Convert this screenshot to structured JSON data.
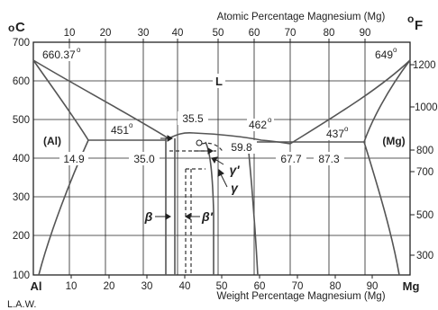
{
  "title_top": "Atomic Percentage Magnesium (Mg)",
  "title_bottom": "Weight Percentage Magnesium (Mg)",
  "unit_c_base": "o",
  "unit_c_letter": "C",
  "unit_f_base": "o",
  "unit_f_letter": "F",
  "credit": "L.A.W.",
  "element_left": "Al",
  "element_right": "Mg",
  "y_ticks_c": [
    "100",
    "200",
    "300",
    "400",
    "500",
    "600",
    "700"
  ],
  "y_ticks_f": [
    "300",
    "500",
    "700",
    "800",
    "1000",
    "1200"
  ],
  "x_ticks_weight": [
    "10",
    "20",
    "30",
    "40",
    "50",
    "60",
    "70",
    "80",
    "90"
  ],
  "x_ticks_atomic": [
    "10",
    "20",
    "30",
    "40",
    "50",
    "60",
    "70",
    "80",
    "90"
  ],
  "phase_liquid": "L",
  "phase_al": "(Al)",
  "phase_mg": "(Mg)",
  "phase_beta": "β",
  "phase_beta_prime": "β'",
  "phase_gamma": "γ",
  "phase_gamma_prime": "γ'",
  "temp_al_melt": "660.37",
  "temp_mg_melt": "649",
  "temp_451": "451",
  "temp_462": "462",
  "temp_437": "437",
  "comp_14_9": "14.9",
  "comp_35_0": "35.0",
  "comp_35_5": "35.5",
  "comp_59_8": "59.8",
  "comp_67_7": "67.7",
  "comp_87_3": "87.3",
  "degree": "o",
  "colors": {
    "line": "#555555",
    "grid": "#222222",
    "text": "#222222"
  }
}
